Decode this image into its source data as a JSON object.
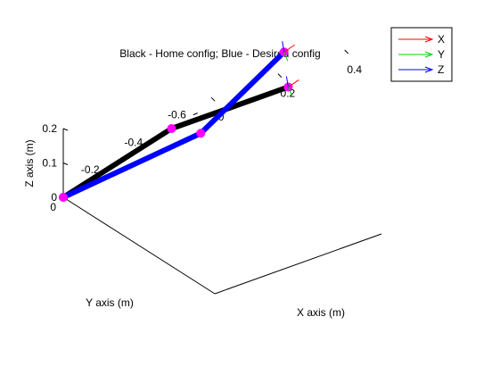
{
  "chart_data": {
    "type": "line",
    "projection": "3d",
    "title": "Black - Home config; Blue - Desired config",
    "xlabel": "X axis (m)",
    "ylabel": "Y axis (m)",
    "zlabel": "Z axis (m)",
    "x_ticks": [
      "0",
      "0.2",
      "0.4"
    ],
    "y_ticks": [
      "0",
      "-0.2",
      "-0.4",
      "-0.6"
    ],
    "z_ticks": [
      "0",
      "0.1",
      "0.2"
    ],
    "xlim": [
      0,
      0.5
    ],
    "ylim": [
      -0.7,
      0
    ],
    "zlim": [
      0,
      0.2
    ],
    "grid": false,
    "legend": {
      "placement": "top-right",
      "entries": [
        {
          "label": "X",
          "color": "#ff0000"
        },
        {
          "label": "Y",
          "color": "#00dd00"
        },
        {
          "label": "Z",
          "color": "#0000ff"
        }
      ]
    },
    "series": [
      {
        "color": "#000000",
        "x": [
          0,
          0,
          0.35
        ],
        "y": [
          0,
          -0.5,
          -0.5
        ],
        "z": [
          0,
          0,
          0
        ]
      },
      {
        "color": "#0000ff",
        "x": [
          0,
          0.25,
          0.5
        ],
        "y": [
          0,
          -0.25,
          -0.25
        ],
        "z": [
          0,
          0,
          0.15
        ]
      }
    ],
    "joint_color": "#ff00ff"
  }
}
